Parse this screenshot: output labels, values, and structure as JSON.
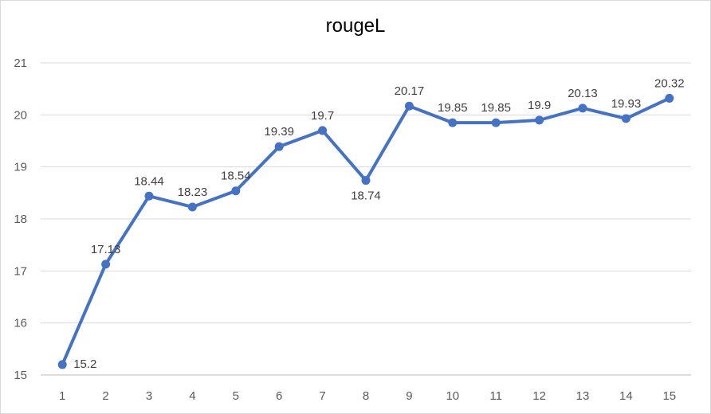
{
  "chart_data": {
    "type": "line",
    "title": "rougeL",
    "xlabel": "",
    "ylabel": "",
    "categories": [
      "1",
      "2",
      "3",
      "4",
      "5",
      "6",
      "7",
      "8",
      "9",
      "10",
      "11",
      "12",
      "13",
      "14",
      "15"
    ],
    "series": [
      {
        "name": "",
        "values": [
          15.2,
          17.13,
          18.44,
          18.23,
          18.54,
          19.39,
          19.7,
          18.74,
          20.17,
          19.85,
          19.85,
          19.9,
          20.13,
          19.93,
          20.32
        ],
        "labels": [
          "15.2",
          "17.13",
          "18.44",
          "18.23",
          "18.54",
          "19.39",
          "19.7",
          "18.74",
          "20.17",
          "19.85",
          "19.85",
          "19.9",
          "20.13",
          "19.93",
          "20.32"
        ]
      }
    ],
    "yticks": [
      "15",
      "16",
      "17",
      "18",
      "19",
      "20",
      "21"
    ],
    "ylim": [
      15,
      21
    ],
    "grid": true,
    "legend": "none",
    "colors": {
      "line": "#4472c4",
      "grid": "#d9d9d9",
      "axis": "#bfbfbf"
    }
  }
}
